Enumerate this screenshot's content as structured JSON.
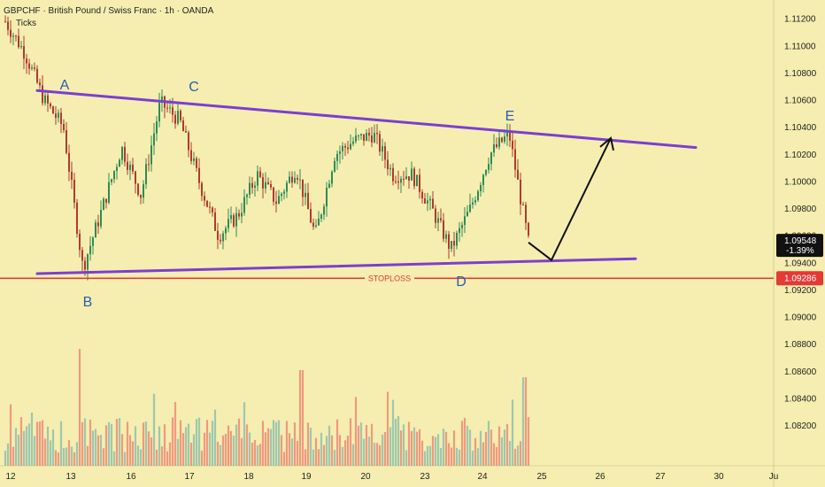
{
  "header": {
    "title": "GBPCHF · British Pound / Swiss Franc · 1h · OANDA",
    "subtitle": "Ticks"
  },
  "colors": {
    "background": "#f5eeb0",
    "up_candle": "#2e8b57",
    "down_candle": "#b03a2e",
    "trendline": "#7b3fd1",
    "stoploss": "#e53935",
    "arrow": "#111111",
    "label": "#2a5db0",
    "vol_up": "#8fbfae",
    "vol_down": "#f08a78"
  },
  "price_scale": {
    "labels": [
      "1.11200",
      "1.11000",
      "1.10800",
      "1.10600",
      "1.10400",
      "1.10200",
      "1.10000",
      "1.09800",
      "1.09600",
      "1.09400",
      "1.09200",
      "1.09000",
      "1.08800",
      "1.08600",
      "1.08400",
      "1.08200"
    ],
    "current_price": "1.09548",
    "current_change": "-1.39%",
    "stoploss_price": "1.09286"
  },
  "time_scale": {
    "labels": [
      "12",
      "13",
      "16",
      "17",
      "18",
      "19",
      "20",
      "23",
      "24",
      "25",
      "26",
      "27",
      "30",
      "Ju"
    ]
  },
  "annotations": {
    "points": [
      "A",
      "B",
      "C",
      "D",
      "E"
    ],
    "stoploss_label": "STOPLOSS"
  },
  "chart_data": {
    "type": "candlestick",
    "symbol": "GBPCHF",
    "timeframe": "1h",
    "ylim": [
      1.0806,
      1.1124
    ],
    "last_price": 1.09548,
    "stoploss": 1.09286,
    "key_points": [
      {
        "label": "A",
        "date": "12",
        "price": 1.1067
      },
      {
        "label": "B",
        "date": "13",
        "price": 1.0934
      },
      {
        "label": "C",
        "date": "17",
        "price": 1.1062
      },
      {
        "label": "D",
        "date": "23",
        "price": 1.0944
      },
      {
        "label": "E",
        "date": "24",
        "price": 1.1038
      }
    ],
    "upper_trendline": [
      {
        "date": "12",
        "price": 1.1067
      },
      {
        "date": "27",
        "price": 1.1025
      }
    ],
    "lower_trendline": [
      {
        "date": "12",
        "price": 1.0932
      },
      {
        "date": "26",
        "price": 1.0943
      }
    ],
    "projection": [
      {
        "date": "24",
        "price": 1.0955
      },
      {
        "date": "25",
        "price": 1.0942
      },
      {
        "date": "26",
        "price": 1.1032
      }
    ],
    "close_path": [
      {
        "date": "12",
        "price": 1.1118
      },
      {
        "date": "12",
        "price": 1.1095
      },
      {
        "date": "12",
        "price": 1.106
      },
      {
        "date": "13",
        "price": 1.104
      },
      {
        "date": "13",
        "price": 1.0936
      },
      {
        "date": "13",
        "price": 1.098
      },
      {
        "date": "16",
        "price": 1.1025
      },
      {
        "date": "16",
        "price": 1.099
      },
      {
        "date": "17",
        "price": 1.1058
      },
      {
        "date": "17",
        "price": 1.1045
      },
      {
        "date": "18",
        "price": 1.1
      },
      {
        "date": "18",
        "price": 1.096
      },
      {
        "date": "18",
        "price": 1.0975
      },
      {
        "date": "19",
        "price": 1.1005
      },
      {
        "date": "19",
        "price": 1.0985
      },
      {
        "date": "19",
        "price": 1.101
      },
      {
        "date": "20",
        "price": 1.096
      },
      {
        "date": "20",
        "price": 1.102
      },
      {
        "date": "20",
        "price": 1.103
      },
      {
        "date": "20",
        "price": 1.1035
      },
      {
        "date": "23",
        "price": 1.1005
      },
      {
        "date": "23",
        "price": 1.1005
      },
      {
        "date": "23",
        "price": 1.098
      },
      {
        "date": "23",
        "price": 1.095
      },
      {
        "date": "24",
        "price": 1.098
      },
      {
        "date": "24",
        "price": 1.102
      },
      {
        "date": "24",
        "price": 1.1035
      },
      {
        "date": "24",
        "price": 1.0955
      }
    ]
  }
}
